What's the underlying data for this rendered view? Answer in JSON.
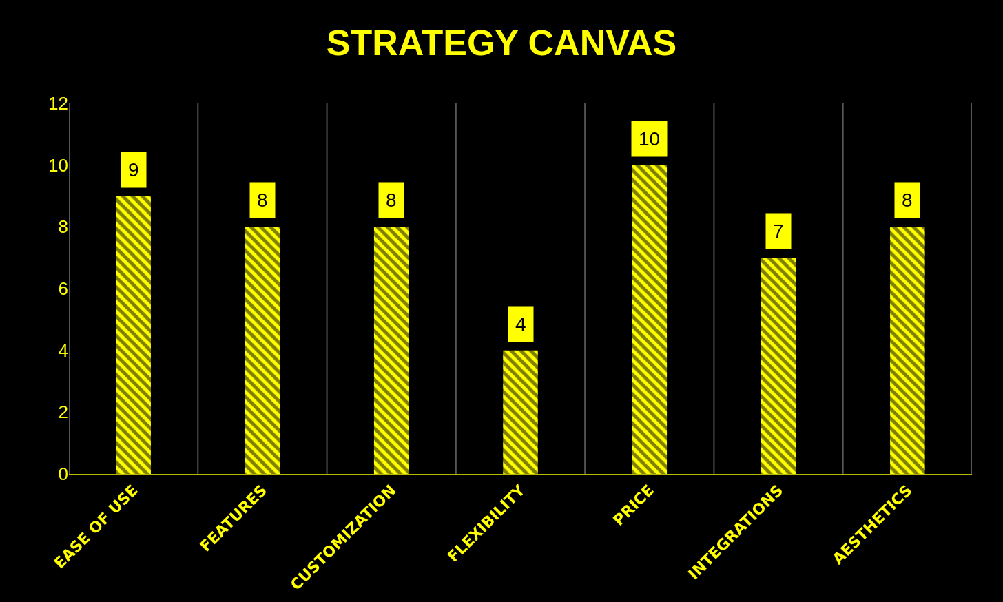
{
  "chart_data": {
    "type": "bar",
    "title": "STRATEGY CANVAS",
    "categories": [
      "EASE OF USE",
      "FEATURES",
      "CUSTOMIZATION",
      "FLEXIBILITY",
      "PRICE",
      "INTEGRATIONS",
      "AESTHETICS"
    ],
    "values": [
      9,
      8,
      8,
      4,
      10,
      7,
      8
    ],
    "color": "#ffff00",
    "ylim": [
      0,
      12
    ],
    "yticks": [
      0,
      2,
      4,
      6,
      8,
      10,
      12
    ],
    "grid": "x",
    "data_labels": true
  }
}
